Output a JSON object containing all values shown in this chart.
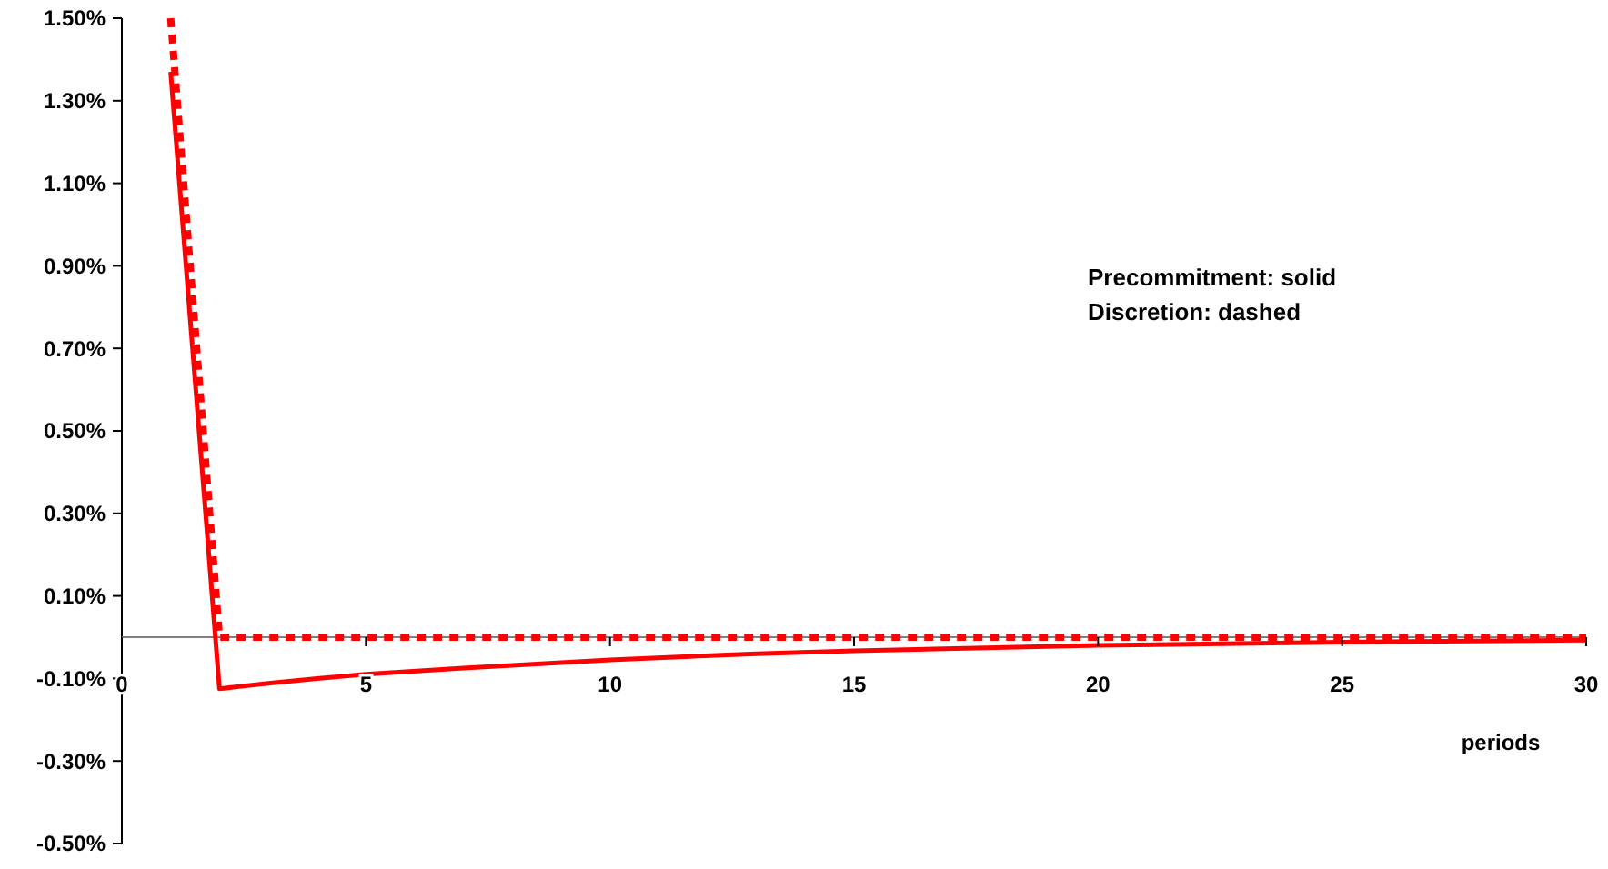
{
  "chart_data": {
    "type": "line",
    "xlabel": "periods",
    "annotations": [
      "Precommitment: solid",
      "Discretion: dashed"
    ],
    "xlim": [
      0,
      30
    ],
    "xticks": [
      0,
      5,
      10,
      15,
      20,
      25,
      30
    ],
    "ylim": [
      -0.5,
      1.5
    ],
    "yticks": [
      {
        "value": -0.5,
        "label": "-0.50%"
      },
      {
        "value": -0.3,
        "label": "-0.30%"
      },
      {
        "value": -0.1,
        "label": "-0.10%"
      },
      {
        "value": 0.1,
        "label": "0.10%"
      },
      {
        "value": 0.3,
        "label": "0.30%"
      },
      {
        "value": 0.5,
        "label": "0.50%"
      },
      {
        "value": 0.7,
        "label": "0.70%"
      },
      {
        "value": 0.9,
        "label": "0.90%"
      },
      {
        "value": 1.1,
        "label": "1.10%"
      },
      {
        "value": 1.3,
        "label": "1.30%"
      },
      {
        "value": 1.5,
        "label": "1.50%"
      }
    ],
    "grid": false,
    "marker": "none",
    "series": [
      {
        "color": "#ff0000",
        "line_style": "solid",
        "x": [
          1,
          2,
          3,
          4,
          5,
          7,
          10,
          13,
          15,
          20,
          25,
          30
        ],
        "values": [
          1.37,
          -0.125,
          -0.112,
          -0.1,
          -0.09,
          -0.075,
          -0.055,
          -0.04,
          -0.033,
          -0.02,
          -0.012,
          -0.007
        ]
      },
      {
        "color": "#ff0000",
        "line_style": "dashed",
        "x": [
          1,
          2,
          30
        ],
        "values": [
          1.5,
          0,
          0
        ]
      }
    ]
  }
}
